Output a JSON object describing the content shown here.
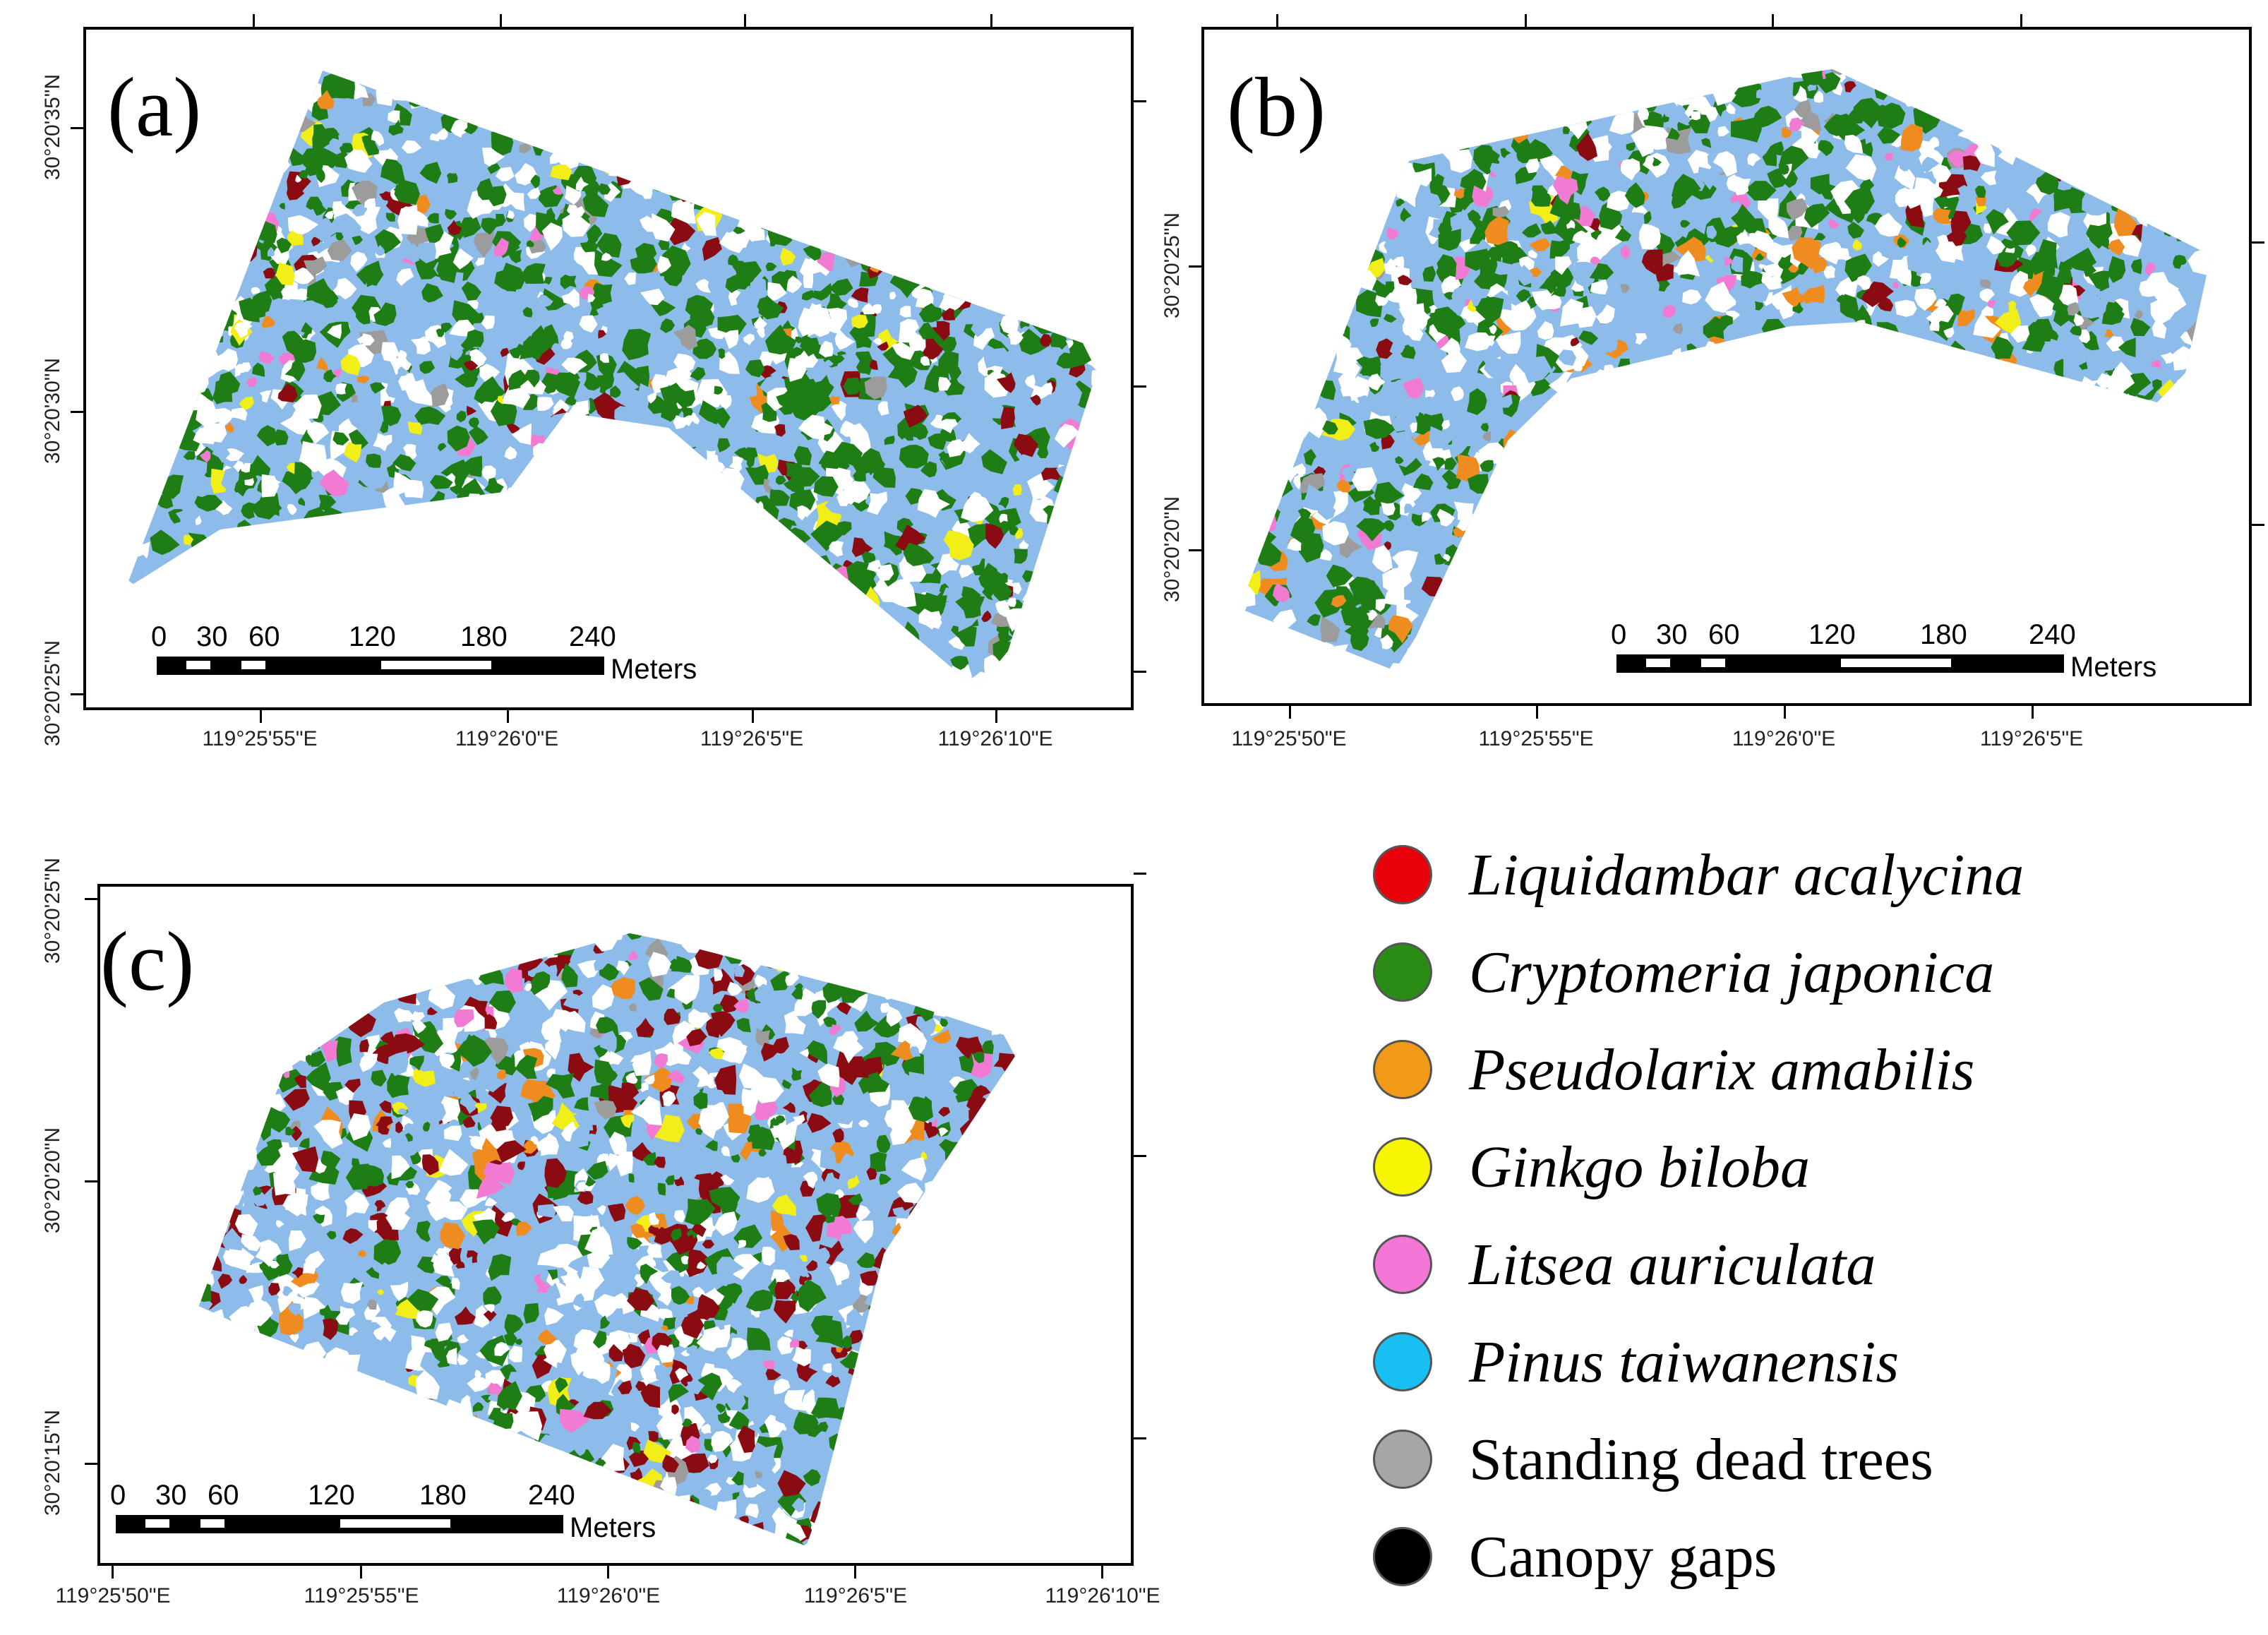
{
  "panels": [
    {
      "label": "(a)",
      "x_ticks": [
        "119°25'55\"E",
        "119°26'0\"E",
        "119°26'5\"E",
        "119°26'10\"E"
      ],
      "y_ticks": [
        "30°20'35\"N",
        "30°20'30\"N",
        "30°20'25\"N"
      ],
      "scalebar": {
        "ticks": [
          "0",
          "30",
          "60",
          "120",
          "180",
          "240"
        ],
        "unit": "Meters"
      }
    },
    {
      "label": "(b)",
      "x_ticks": [
        "119°25'50\"E",
        "119°25'55\"E",
        "119°26'0\"E",
        "119°26'5\"E"
      ],
      "y_ticks": [
        "30°20'25\"N",
        "30°20'20\"N"
      ],
      "scalebar": {
        "ticks": [
          "0",
          "30",
          "60",
          "120",
          "180",
          "240"
        ],
        "unit": "Meters"
      }
    },
    {
      "label": "(c)",
      "x_ticks": [
        "119°25'50\"E",
        "119°25'55\"E",
        "119°26'0\"E",
        "119°26'5\"E",
        "119°26'10\"E"
      ],
      "y_ticks": [
        "30°20'25\"N",
        "30°20'20\"N",
        "30°20'15\"N"
      ],
      "scalebar": {
        "ticks": [
          "0",
          "30",
          "60",
          "120",
          "180",
          "240"
        ],
        "unit": "Meters"
      }
    }
  ],
  "legend": [
    {
      "label": "Liquidambar acalycina",
      "color": "#e8000b",
      "italic": true
    },
    {
      "label": "Cryptomeria japonica",
      "color": "#2a8c14",
      "italic": true
    },
    {
      "label": "Pseudolarix amabilis",
      "color": "#f29a18",
      "italic": true
    },
    {
      "label": "Ginkgo biloba",
      "color": "#f7f500",
      "italic": true
    },
    {
      "label": "Litsea auriculata",
      "color": "#f477d8",
      "italic": true
    },
    {
      "label": "Pinus taiwanensis",
      "color": "#17bff2",
      "italic": true
    },
    {
      "label": "Standing dead trees",
      "color": "#a6a6a6",
      "italic": false
    },
    {
      "label": "Canopy gaps",
      "color": "#000000",
      "italic": false
    }
  ],
  "map_colors": {
    "pine": "#8dbcea",
    "cryptomeria": "#1f7d16",
    "liquidambar": "#8a0b12",
    "pseudolarix": "#ee8c1f",
    "ginkgo": "#f2ee18",
    "litsea": "#f17ad2",
    "dead": "#9c9c9c"
  }
}
